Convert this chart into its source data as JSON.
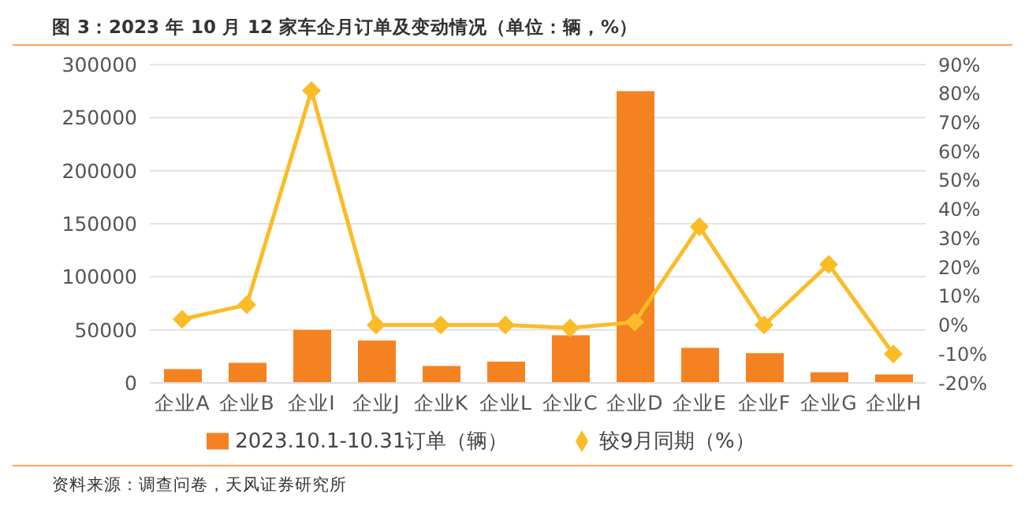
{
  "chart_data": {
    "type": "bar",
    "title": "图 3：2023 年 10 月 12 家车企月订单及变动情况（单位：辆，%）",
    "categories": [
      "企业A",
      "企业B",
      "企业I",
      "企业J",
      "企业K",
      "企业L",
      "企业C",
      "企业D",
      "企业E",
      "企业F",
      "企业G",
      "企业H"
    ],
    "series": [
      {
        "name": "2023.10.1-10.31订单（辆）",
        "color": "#f58220",
        "values": [
          13000,
          19000,
          50000,
          40000,
          16000,
          20000,
          45000,
          275000,
          33000,
          28000,
          10000,
          8000
        ]
      },
      {
        "name": "较9月同期（%）",
        "type": "line",
        "axis": "y2",
        "color": "#fbbc28",
        "marker": "diamond",
        "values": [
          2,
          7,
          81,
          0,
          0,
          0,
          -1,
          1,
          34,
          0,
          21,
          -10
        ]
      }
    ],
    "ylim": [
      0,
      300000
    ],
    "yticks": [
      0,
      50000,
      100000,
      150000,
      200000,
      250000,
      300000
    ],
    "y2lim": [
      -20,
      90
    ],
    "y2ticks": [
      {
        "value": -20,
        "label": "-20%"
      },
      {
        "value": -10,
        "label": "-10%"
      },
      {
        "value": 0,
        "label": "0%"
      },
      {
        "value": 10,
        "label": "10%"
      },
      {
        "value": 20,
        "label": "20%"
      },
      {
        "value": 30,
        "label": "30%"
      },
      {
        "value": 40,
        "label": "40%"
      },
      {
        "value": 50,
        "label": "50%"
      },
      {
        "value": 60,
        "label": "60%"
      },
      {
        "value": 70,
        "label": "70%"
      },
      {
        "value": 80,
        "label": "80%"
      },
      {
        "value": 90,
        "label": "90%"
      }
    ],
    "grid": "y",
    "legend": "bottom",
    "annotations": [
      "资料来源：调查问卷，天风证券研究所"
    ]
  }
}
